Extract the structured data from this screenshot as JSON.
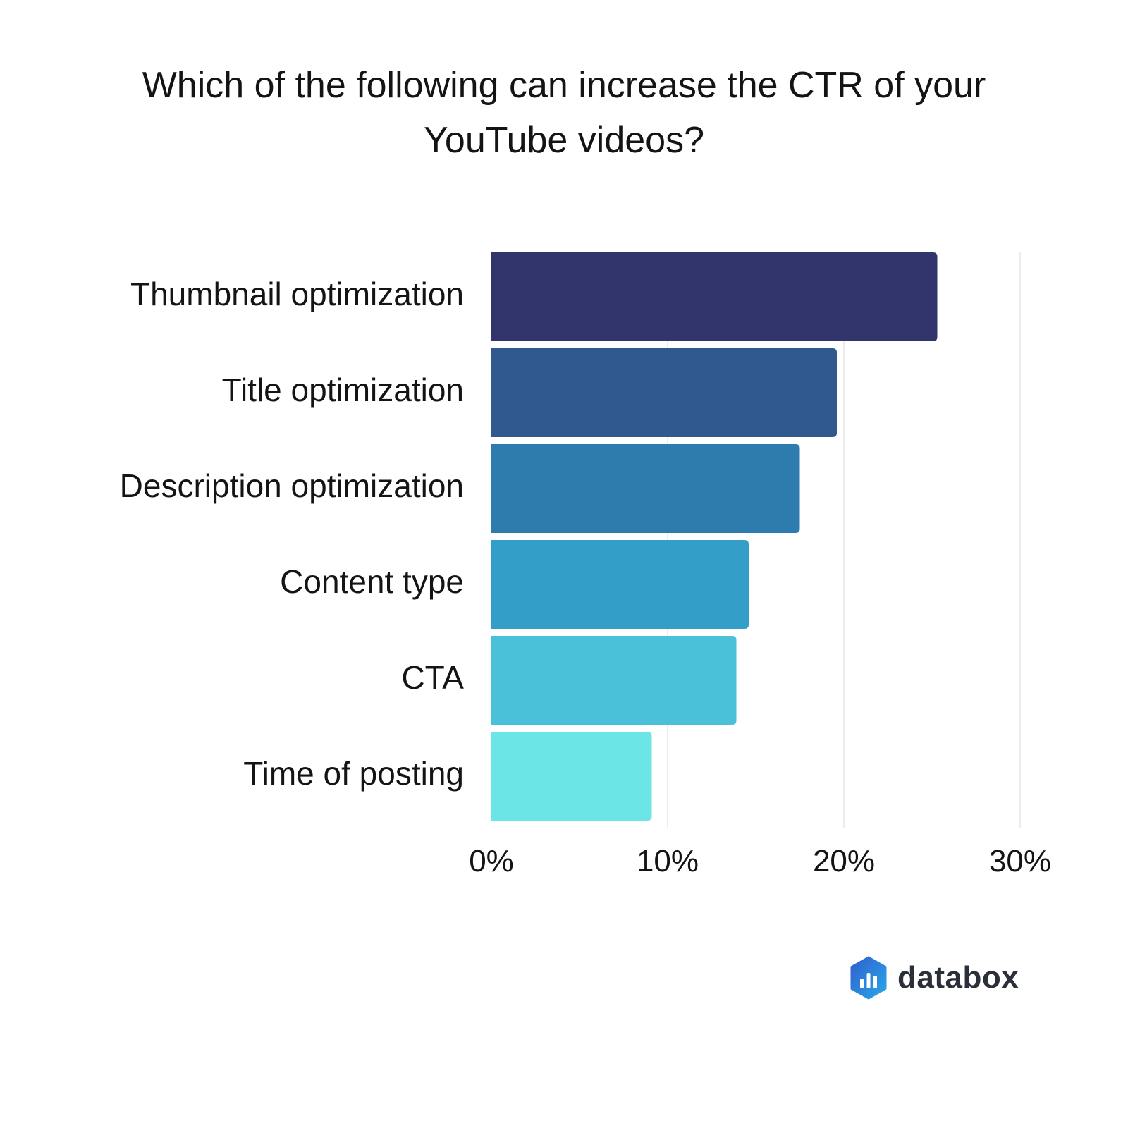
{
  "chart_data": {
    "type": "bar",
    "orientation": "horizontal",
    "title_lines": [
      "Which of the following can increase the CTR of your",
      "YouTube videos?"
    ],
    "categories": [
      "Thumbnail optimization",
      "Title optimization",
      "Description optimization",
      "Content type",
      "CTA",
      "Time of posting"
    ],
    "values": [
      25.3,
      19.6,
      17.5,
      14.6,
      13.9,
      9.1
    ],
    "xlim": [
      0,
      30
    ],
    "x_ticks": [
      "0%",
      "10%",
      "20%",
      "30%"
    ],
    "x_tick_values": [
      0,
      10,
      20,
      30
    ],
    "colors": [
      "#32356b",
      "#30598f",
      "#2e7bae",
      "#339fc8",
      "#4ac1d9",
      "#6ce5e7"
    ],
    "grid": true
  },
  "brand": {
    "name": "databox",
    "logo_icon": "databox-hexagon-icon"
  }
}
